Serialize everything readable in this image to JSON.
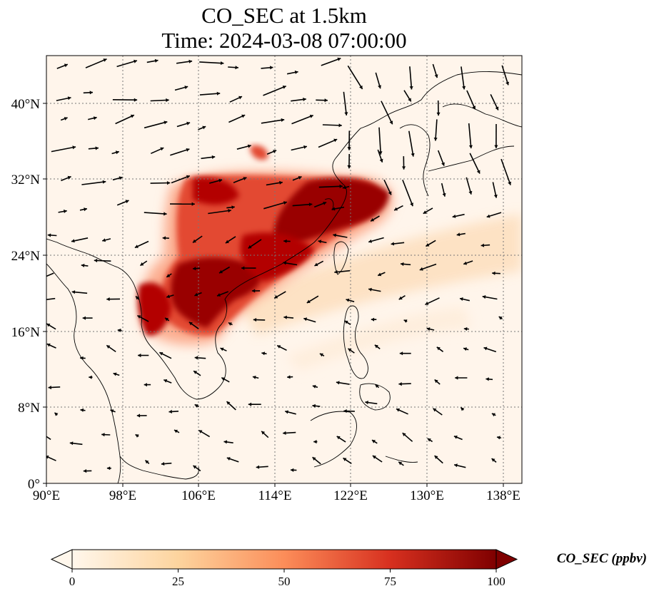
{
  "title": {
    "line1": "CO_SEC at 1.5km",
    "line2": "Time: 2024-03-08 07:00:00"
  },
  "map": {
    "projection": "PlateCarree",
    "lon_range": [
      90,
      140
    ],
    "lat_range": [
      0,
      45
    ],
    "background_color": "#fff5eb",
    "gridlines": "dotted",
    "coastlines": true,
    "vectors": "wind arrows (black)",
    "x_ticks": [
      {
        "value": 90,
        "label": "90°E"
      },
      {
        "value": 98,
        "label": "98°E"
      },
      {
        "value": 106,
        "label": "106°E"
      },
      {
        "value": 114,
        "label": "114°E"
      },
      {
        "value": 122,
        "label": "122°E"
      },
      {
        "value": 130,
        "label": "130°E"
      },
      {
        "value": 138,
        "label": "138°E"
      }
    ],
    "y_ticks": [
      {
        "value": 0,
        "label": "0°"
      },
      {
        "value": 8,
        "label": "8°N"
      },
      {
        "value": 16,
        "label": "16°N"
      },
      {
        "value": 24,
        "label": "24°N"
      },
      {
        "value": 32,
        "label": "32°N"
      },
      {
        "value": 40,
        "label": "40°N"
      }
    ]
  },
  "colorbar": {
    "title": "CO_SEC (ppbv)",
    "colormap": "OrRd",
    "range": [
      0,
      100
    ],
    "extend": "both",
    "ticks": [
      {
        "value": 0,
        "label": "0"
      },
      {
        "value": 25,
        "label": "25"
      },
      {
        "value": 50,
        "label": "50"
      },
      {
        "value": 75,
        "label": "75"
      },
      {
        "value": 100,
        "label": "100"
      }
    ],
    "colors": [
      "#fff7ec",
      "#fdd49e",
      "#fc8d59",
      "#d7301f",
      "#7f0000"
    ]
  }
}
